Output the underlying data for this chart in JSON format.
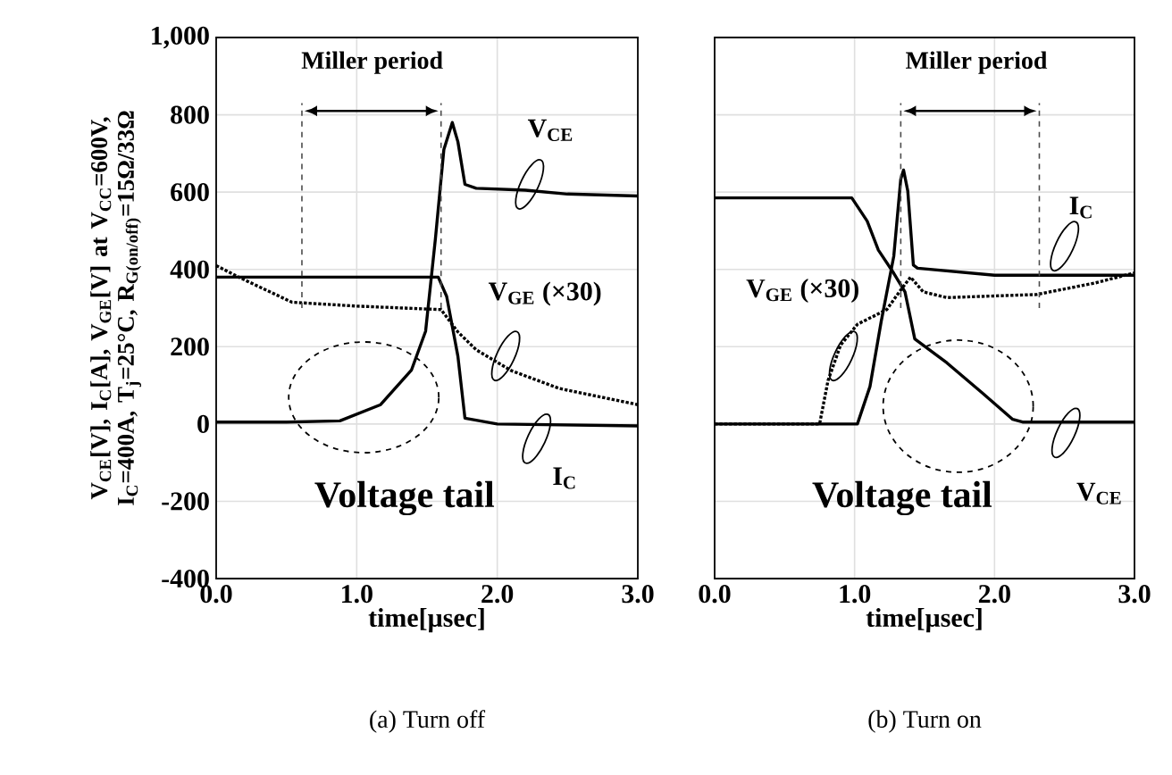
{
  "chart_data": [
    {
      "type": "line",
      "xlabel": "time[µsec]",
      "ylabel": "V$_{CE}$[V], I$_{C}$[A], V$_{GE}$[V] at V$_{CC}$=600V, I$_{C}$=400A, T$_{j}$=25°C, R$_{G(on/off)}$=15Ω/33Ω",
      "xlim": [
        0,
        3
      ],
      "ylim": [
        -400,
        1000
      ],
      "xticks": [
        {
          "value": 0,
          "label": "0.0"
        },
        {
          "value": 1,
          "label": "1.0"
        },
        {
          "value": 2,
          "label": "2.0"
        },
        {
          "value": 3,
          "label": "3.0"
        }
      ],
      "yticks": [
        -400,
        -200,
        0,
        200,
        400,
        600,
        800,
        {
          "value": 1000,
          "label": "1,000"
        }
      ],
      "grid": true,
      "series": [
        {
          "name": "V$_{CE}$",
          "color": "#000000",
          "x": [
            0,
            0.5,
            0.88,
            1.17,
            1.39,
            1.49,
            1.56,
            1.62,
            1.68,
            1.72,
            1.77,
            1.85,
            2.2,
            2.5,
            3.0
          ],
          "values": [
            5,
            5,
            8,
            50,
            140,
            240,
            480,
            710,
            780,
            730,
            620,
            610,
            605,
            595,
            590
          ]
        },
        {
          "name": "I$_{C}$",
          "color": "#000000",
          "x": [
            0,
            1.0,
            1.58,
            1.64,
            1.72,
            1.77,
            2.0,
            3.0
          ],
          "values": [
            380,
            380,
            380,
            330,
            175,
            15,
            0,
            -5
          ]
        },
        {
          "name": "V$_{GE}$ (×30)",
          "color": "#000000",
          "line_style": "dotted",
          "x": [
            0,
            0.16,
            0.54,
            1.0,
            1.6,
            1.72,
            1.85,
            2.1,
            2.44,
            3.0
          ],
          "values": [
            410,
            380,
            315,
            305,
            296,
            238,
            192,
            138,
            92,
            50
          ]
        }
      ],
      "ref_lines": [
        {
          "axis": "x",
          "value": 0.61,
          "line_style": "dashed"
        },
        {
          "axis": "x",
          "value": 1.6,
          "line_style": "dashed"
        }
      ],
      "annotations": [
        "Miller period",
        "Voltage tail",
        "(a) Turn off"
      ]
    },
    {
      "type": "line",
      "xlabel": "time[µsec]",
      "xlim": [
        0,
        3
      ],
      "ylim": [
        -400,
        1000
      ],
      "xticks": [
        {
          "value": 0,
          "label": "0.0"
        },
        {
          "value": 1,
          "label": "1.0"
        },
        {
          "value": 2,
          "label": "2.0"
        },
        {
          "value": 3,
          "label": "3.0"
        }
      ],
      "yticks": [
        -400,
        -200,
        0,
        200,
        400,
        600,
        800,
        1000
      ],
      "tick_labels": "x",
      "grid": true,
      "series": [
        {
          "name": "V$_{CE}$",
          "color": "#000000",
          "x": [
            0,
            0.98,
            1.09,
            1.17,
            1.28,
            1.36,
            1.43,
            1.66,
            1.91,
            2.13,
            2.2,
            3.0
          ],
          "values": [
            585,
            585,
            525,
            450,
            390,
            342,
            220,
            158,
            81,
            12,
            5,
            5
          ]
        },
        {
          "name": "I$_{C}$",
          "color": "#000000",
          "x": [
            0,
            1.02,
            1.11,
            1.19,
            1.28,
            1.33,
            1.35,
            1.38,
            1.42,
            1.45,
            2.0,
            3.0
          ],
          "values": [
            0,
            0,
            97,
            265,
            434,
            634,
            657,
            603,
            411,
            403,
            385,
            385
          ]
        },
        {
          "name": "V$_{GE}$ (×30)",
          "color": "#000000",
          "line_style": "dotted",
          "x": [
            0,
            0.75,
            0.81,
            0.9,
            1.02,
            1.23,
            1.32,
            1.4,
            1.49,
            1.66,
            2.3,
            2.72,
            3.0
          ],
          "values": [
            0,
            0,
            112,
            204,
            258,
            296,
            342,
            380,
            342,
            327,
            335,
            365,
            391
          ]
        }
      ],
      "ref_lines": [
        {
          "axis": "x",
          "value": 1.33,
          "line_style": "dashed"
        },
        {
          "axis": "x",
          "value": 2.32,
          "line_style": "dashed"
        }
      ],
      "annotations": [
        "Miller period",
        "Voltage tail",
        "(b) Turn on"
      ]
    }
  ]
}
